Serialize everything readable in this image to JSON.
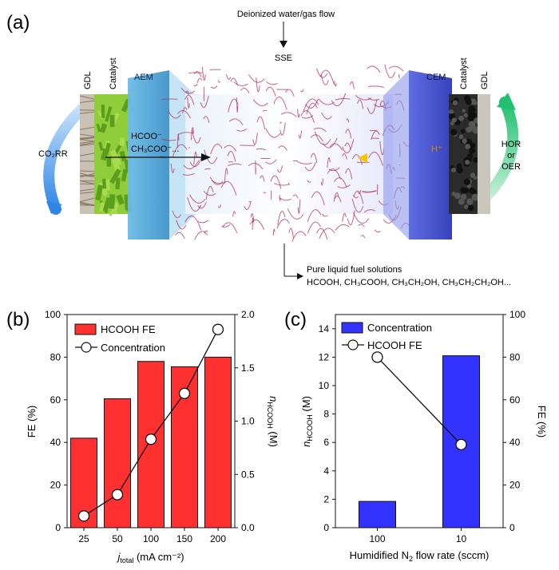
{
  "panel_a": {
    "label": "(a)",
    "top_flow": "Deionized water/gas flow",
    "sse": "SSE",
    "left_gdl": "GDL",
    "left_catalyst": "Catalyst",
    "aem": "AEM",
    "cem": "CEM",
    "right_catalyst": "Catalyst",
    "right_gdl": "GDL",
    "co2rr": "CO₂RR",
    "hcoo": "HCOO⁻",
    "ch3coo": "CH₃COO⁻...",
    "hplus": "H⁺",
    "hor": "HOR",
    "or": "or",
    "oer": "OER",
    "fuel_title": "Pure liquid fuel solutions",
    "fuel_list": "HCOOH, CH₃COOH, CH₃CH₂OH, CH₃CH₂CH₂OH...",
    "colors": {
      "aem": "#4aa3d8",
      "cem": "#3b4bd0",
      "membrane_fiber": "#b0305a",
      "catalyst_left": "#7dbb2a",
      "catalyst_right": "#2a2a2a",
      "arrow_left": "#2f86e6",
      "arrow_right": "#20c070"
    }
  },
  "chart_data": [
    {
      "panel": "(b)",
      "type": "bar",
      "categories": [
        "25",
        "50",
        "100",
        "150",
        "200"
      ],
      "series": [
        {
          "name": "HCOOH FE",
          "type": "bar",
          "axis": "left",
          "color": "#ff3030",
          "values": [
            42,
            60.5,
            78,
            75.5,
            80
          ]
        },
        {
          "name": "Concentration",
          "type": "line",
          "axis": "right",
          "marker": "open-circle",
          "values": [
            0.11,
            0.31,
            0.83,
            1.26,
            1.86
          ]
        }
      ],
      "xlabel_main": "j",
      "xlabel_sub": "total",
      "xlabel_unit": " (mA cm⁻²)",
      "ylabel_left": "FE (%)",
      "ylabel_right_main": "n",
      "ylabel_right_sub": "HCOOH",
      "ylabel_right_unit": " (M)",
      "ylim_left": [
        0,
        100
      ],
      "ylim_right": [
        0,
        2.0
      ],
      "yticks_left": [
        "0",
        "20",
        "40",
        "60",
        "80",
        "100"
      ],
      "yticks_right": [
        "0.0",
        "0.5",
        "1.0",
        "1.5",
        "2.0"
      ],
      "legend_placement": "top-left"
    },
    {
      "panel": "(c)",
      "type": "bar",
      "categories": [
        "100",
        "10"
      ],
      "series": [
        {
          "name": "Concentration",
          "type": "bar",
          "axis": "left",
          "color": "#3333ff",
          "values": [
            1.85,
            12.1
          ]
        },
        {
          "name": "HCOOH FE",
          "type": "line",
          "axis": "right",
          "marker": "open-circle",
          "values": [
            80,
            39
          ]
        }
      ],
      "xlabel_main": "Humidified N",
      "xlabel_sub": "2",
      "xlabel_unit": " flow rate (sccm)",
      "ylabel_left_main": "n",
      "ylabel_left_sub": "HCOOH",
      "ylabel_left_unit": " (M)",
      "ylabel_right": "FE (%)",
      "ylim_left": [
        0,
        15
      ],
      "ylim_right": [
        0,
        100
      ],
      "yticks_left": [
        "0",
        "2",
        "4",
        "6",
        "8",
        "10",
        "12",
        "14"
      ],
      "yticks_right": [
        "0",
        "20",
        "40",
        "60",
        "80",
        "100"
      ],
      "legend_placement": "top-left"
    }
  ]
}
